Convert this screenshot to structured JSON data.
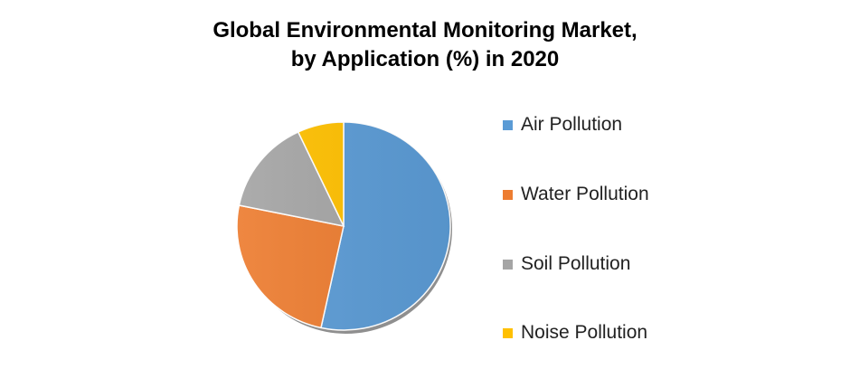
{
  "chart_data": {
    "type": "pie",
    "title_line1": "Global Environmental Monitoring Market,",
    "title_line2": "by Application (%) in 2020",
    "categories": [
      "Air Pollution",
      "Water Pollution",
      "Soil Pollution",
      "Noise Pollution"
    ],
    "values": [
      53.4,
      24.8,
      14.8,
      7.0
    ],
    "colors": [
      "#5B9BD5",
      "#ED7D31",
      "#A5A5A5",
      "#FFC000"
    ],
    "legend_position": "right"
  }
}
